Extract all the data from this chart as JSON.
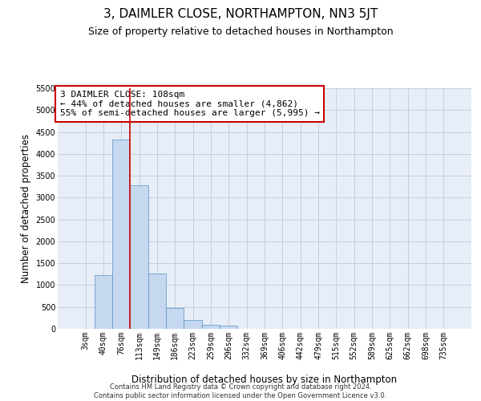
{
  "title": "3, DAIMLER CLOSE, NORTHAMPTON, NN3 5JT",
  "subtitle": "Size of property relative to detached houses in Northampton",
  "xlabel": "Distribution of detached houses by size in Northampton",
  "ylabel": "Number of detached properties",
  "footer_line1": "Contains HM Land Registry data © Crown copyright and database right 2024.",
  "footer_line2": "Contains public sector information licensed under the Open Government Licence v3.0.",
  "categories": [
    "3sqm",
    "40sqm",
    "76sqm",
    "113sqm",
    "149sqm",
    "186sqm",
    "223sqm",
    "259sqm",
    "296sqm",
    "332sqm",
    "369sqm",
    "406sqm",
    "442sqm",
    "479sqm",
    "515sqm",
    "552sqm",
    "589sqm",
    "625sqm",
    "662sqm",
    "698sqm",
    "735sqm"
  ],
  "bar_values": [
    0,
    1230,
    4330,
    3280,
    1260,
    480,
    205,
    100,
    65,
    0,
    0,
    0,
    0,
    0,
    0,
    0,
    0,
    0,
    0,
    0,
    0
  ],
  "bar_color": "#c5d8f0",
  "bar_edge_color": "#5a8fc0",
  "ylim": [
    0,
    5500
  ],
  "yticks": [
    0,
    500,
    1000,
    1500,
    2000,
    2500,
    3000,
    3500,
    4000,
    4500,
    5000,
    5500
  ],
  "vline_x_index": 3,
  "vline_color": "#cc0000",
  "annotation_title": "3 DAIMLER CLOSE: 108sqm",
  "annotation_line1": "← 44% of detached houses are smaller (4,862)",
  "annotation_line2": "55% of semi-detached houses are larger (5,995) →",
  "annotation_box_color": "#ffffff",
  "annotation_box_edge": "#cc0000",
  "background_color": "#ffffff",
  "plot_bg_color": "#e8eef8",
  "grid_color": "#c0c8d8",
  "title_fontsize": 11,
  "subtitle_fontsize": 9,
  "axis_label_fontsize": 8.5,
  "tick_fontsize": 7,
  "annotation_fontsize": 8,
  "footer_fontsize": 6
}
